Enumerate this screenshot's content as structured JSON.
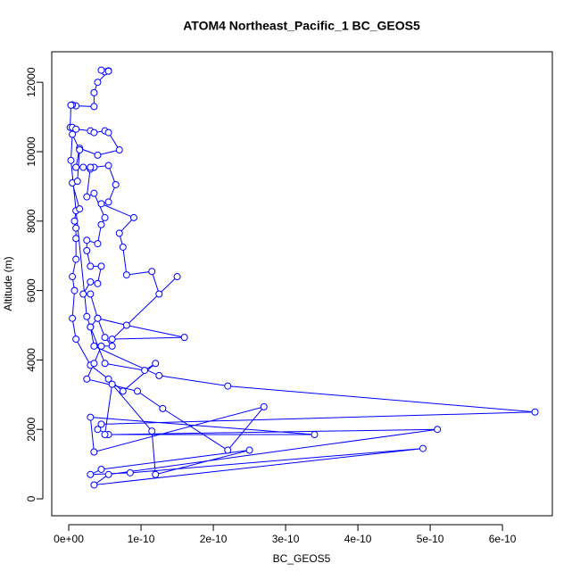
{
  "chart_data": {
    "type": "line",
    "title": "ATOM4 Northeast_Pacific_1 BC_GEOS5",
    "xlabel": "BC_GEOS5",
    "ylabel": "Altitude (m)",
    "color": "#0000ff",
    "xlim": [
      -2.35e-11,
      6.69e-10
    ],
    "ylim": [
      -488,
      12879
    ],
    "xticks": [
      {
        "value": 0,
        "label": "0e+00"
      },
      {
        "value": 1e-10,
        "label": "1e-10"
      },
      {
        "value": 2e-10,
        "label": "2e-10"
      },
      {
        "value": 3e-10,
        "label": "3e-10"
      },
      {
        "value": 4e-10,
        "label": "4e-10"
      },
      {
        "value": 5e-10,
        "label": "5e-10"
      },
      {
        "value": 6e-10,
        "label": "6e-10"
      }
    ],
    "yticks": [
      0,
      2000,
      4000,
      6000,
      8000,
      10000,
      12000
    ],
    "x": [
      5.5e-11,
      5e-11,
      4.5e-11,
      5.5e-11,
      4e-11,
      3.5e-11,
      3.5e-11,
      1e-11,
      5e-12,
      3e-12,
      2e-12,
      5e-12,
      1e-11,
      3e-11,
      3.5e-11,
      5e-11,
      5.5e-11,
      7e-11,
      4e-11,
      1.5e-11,
      1e-11,
      2e-11,
      3e-11,
      3.5e-11,
      5.5e-11,
      6.5e-11,
      5.5e-11,
      4.5e-11,
      9e-11,
      7e-11,
      7.5e-11,
      8e-11,
      1.15e-10,
      1.25e-10,
      1.5e-10,
      6e-11,
      1.6e-10,
      8e-11,
      4e-11,
      3e-11,
      5e-11,
      1.05e-10,
      1.2e-10,
      7.5e-11,
      5.5e-11,
      3e-11,
      1e-11,
      5e-12,
      8e-12,
      5e-12,
      1e-11,
      1e-11,
      1e-11,
      8e-12,
      1e-11,
      1.5e-11,
      5e-12,
      1.2e-11,
      1.5e-11,
      5e-12,
      3e-12,
      2.5e-11,
      3e-11,
      3.5e-11,
      1.25e-10,
      2.2e-10,
      6.45e-10,
      4.5e-11,
      4e-11,
      5.5e-11,
      5.1e-10,
      5.5e-11,
      3.5e-11,
      4.9e-10,
      8.5e-11,
      3e-11,
      4.5e-11,
      2.5e-10,
      1.2e-10,
      1.15e-10,
      6e-11,
      5e-11,
      3.4e-10,
      3e-11,
      3.5e-11,
      2.7e-10,
      2.2e-10,
      1.3e-10,
      9.5e-11,
      2.5e-11,
      3.5e-11,
      4.5e-11,
      6e-11,
      5e-11,
      4e-11,
      3e-11,
      2e-11,
      3e-11,
      4e-11,
      4.5e-11,
      3e-11,
      2.5e-11,
      2.5e-11,
      4e-11,
      4.5e-11,
      5e-11,
      3.5e-11,
      2.5e-11,
      3e-11
    ],
    "y": [
      12330,
      12300,
      12350,
      12320,
      12000,
      11700,
      11300,
      11320,
      11350,
      11340,
      10700,
      10700,
      10650,
      10600,
      10550,
      10600,
      10550,
      10050,
      9900,
      10100,
      9550,
      9550,
      9500,
      9550,
      9600,
      9050,
      8550,
      8500,
      8100,
      7650,
      7250,
      6450,
      6550,
      5900,
      6400,
      4600,
      4650,
      5000,
      5200,
      4950,
      3900,
      3700,
      3900,
      3100,
      3450,
      3850,
      4600,
      5200,
      6000,
      6400,
      6900,
      7500,
      7800,
      8000,
      8300,
      8350,
      9100,
      9150,
      10050,
      10500,
      9750,
      5250,
      4950,
      4400,
      3550,
      3250,
      2500,
      2150,
      2000,
      1850,
      2000,
      700,
      400,
      1450,
      750,
      700,
      850,
      1400,
      700,
      1950,
      3300,
      1850,
      1850,
      2350,
      1350,
      2650,
      1400,
      2600,
      3100,
      3450,
      3900,
      4400,
      4400,
      4650,
      5200,
      5900,
      5900,
      6250,
      6200,
      6700,
      6700,
      7150,
      7450,
      7350,
      7900,
      8100,
      8800,
      8700,
      9550
    ]
  }
}
